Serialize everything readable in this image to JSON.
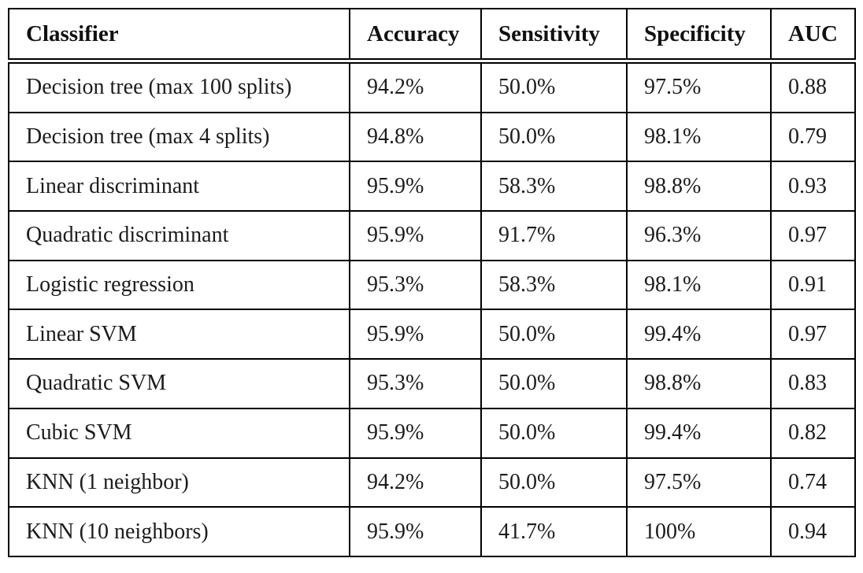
{
  "page": {
    "background_color": "#ffffff",
    "border_color": "#000000",
    "text_color": "#1a1a1a"
  },
  "table": {
    "columns": [
      "Classifier",
      "Accuracy",
      "Sensitivity",
      "Specificity",
      "AUC"
    ],
    "rows": [
      [
        "Decision tree (max 100 splits)",
        "94.2%",
        "50.0%",
        "97.5%",
        "0.88"
      ],
      [
        "Decision tree (max 4 splits)",
        "94.8%",
        "50.0%",
        "98.1%",
        "0.79"
      ],
      [
        "Linear discriminant",
        "95.9%",
        "58.3%",
        "98.8%",
        "0.93"
      ],
      [
        "Quadratic discriminant",
        "95.9%",
        "91.7%",
        "96.3%",
        "0.97"
      ],
      [
        "Logistic regression",
        "95.3%",
        "58.3%",
        "98.1%",
        "0.91"
      ],
      [
        "Linear SVM",
        "95.9%",
        "50.0%",
        "99.4%",
        "0.97"
      ],
      [
        "Quadratic SVM",
        "95.3%",
        "50.0%",
        "98.8%",
        "0.83"
      ],
      [
        "Cubic SVM",
        "95.9%",
        "50.0%",
        "99.4%",
        "0.82"
      ],
      [
        "KNN (1 neighbor)",
        "94.2%",
        "50.0%",
        "97.5%",
        "0.74"
      ],
      [
        "KNN (10 neighbors)",
        "95.9%",
        "41.7%",
        "100%",
        "0.94"
      ]
    ]
  }
}
